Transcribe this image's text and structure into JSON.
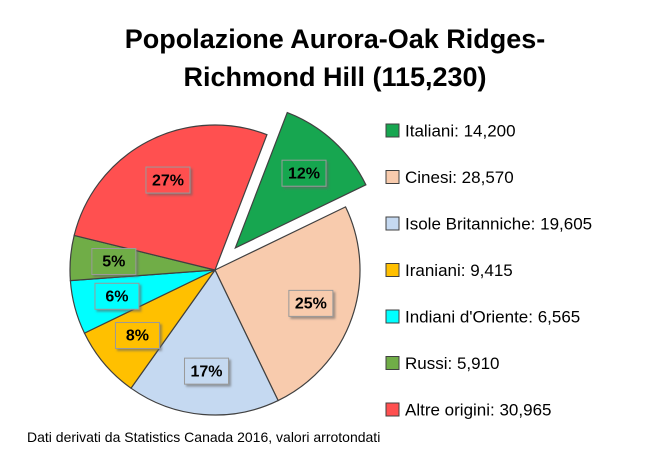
{
  "chart_data": {
    "type": "pie",
    "title": "Popolazione Aurora-Oak Ridges-Richmond Hill (115,230)",
    "categories": [
      "Italiani: 14,200",
      "Cinesi: 28,570",
      "Isole Britanniche: 19,605",
      "Iraniani: 9,415",
      "Indiani d'Oriente: 6,565",
      "Russi: 5,910",
      "Altre origini: 30,965"
    ],
    "values": [
      12,
      25,
      17,
      8,
      6,
      5,
      27
    ],
    "value_labels": [
      "12%",
      "25%",
      "17%",
      "8%",
      "6%",
      "5%",
      "27%"
    ],
    "colors": [
      "#17a650",
      "#f8cbad",
      "#c5d9f1",
      "#ffc000",
      "#00ffff",
      "#70ad47",
      "#ff5050"
    ],
    "exploded": [
      0
    ],
    "source": "Dati derivati da Statistics Canada 2016, valori arrotondati"
  }
}
